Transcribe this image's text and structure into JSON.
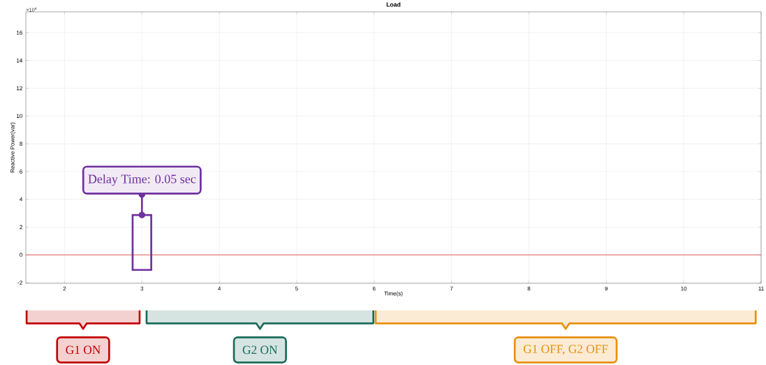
{
  "chart_data": {
    "type": "line",
    "title": "Load",
    "xlabel": "Time(s)",
    "ylabel": "Reactive Power(var)",
    "xlim": [
      1.5,
      11
    ],
    "ylim": [
      -2.05,
      17.5
    ],
    "xticks": [
      2,
      3,
      4,
      5,
      6,
      7,
      8,
      9,
      10,
      11
    ],
    "yticks": [
      -2,
      0,
      2,
      4,
      6,
      8,
      10,
      12,
      14,
      16
    ],
    "grid": true,
    "series": [
      {
        "color": "#d9534f",
        "x": [
          1.5,
          11
        ],
        "values": [
          0,
          0
        ]
      }
    ],
    "annotations": [
      "×10$^{4}$",
      "G1 ON",
      "G2 ON",
      "G1 OFF, G2 OFF",
      {
        "text": "Delay Time: 0.05 sec",
        "x": 3,
        "y": 2.87
      }
    ]
  }
}
